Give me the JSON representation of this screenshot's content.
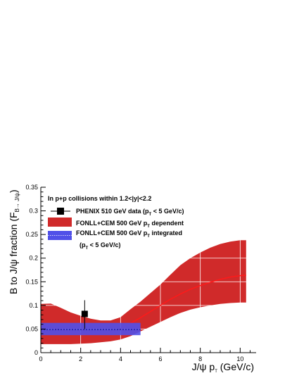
{
  "chart_data": {
    "type": "line",
    "xlabel": {
      "base": "J/ψ p",
      "sub": "T",
      "tail": " (GeV/c)"
    },
    "ylabel": {
      "base": "B to J/ψ fraction (F",
      "sub": "B→ J/ψ",
      "tail": ")"
    },
    "xlim": [
      0,
      10.8
    ],
    "ylim": [
      0,
      0.35
    ],
    "x_ticks": [
      0,
      2,
      4,
      6,
      8,
      10
    ],
    "y_ticks": [
      0,
      0.05,
      0.1,
      0.15,
      0.2,
      0.25,
      0.3,
      0.35
    ],
    "x_tick_labels": [
      "0",
      "2",
      "4",
      "6",
      "8",
      "10"
    ],
    "y_tick_labels": [
      "0",
      "0.05",
      "0.1",
      "0.15",
      "0.2",
      "0.25",
      "0.3",
      "0.35"
    ],
    "grid": true,
    "legend_header": "In p+p collisions within 1.2<|y|<2.2",
    "legend_entries": [
      {
        "base": "PHENIX 510 GeV data (p",
        "sub": "T",
        "tail": " < 5 GeV/c)"
      },
      {
        "base": "FONLL+CEM 500 GeV p",
        "sub": "T",
        "tail": " dependent"
      },
      {
        "base": "FONLL+CEM 500 GeV p",
        "sub": "T",
        "tail": " integrated"
      },
      {
        "base": "(p",
        "sub": "T",
        "tail": " < 5 GeV/c)"
      }
    ],
    "colors": {
      "data": "#000000",
      "band": "#d02a2a",
      "central_curve": "#ff1a1a",
      "integrated_band": "#5050e8",
      "integrated_line": "#000080",
      "grid": "#ffffff"
    },
    "series": [
      {
        "style": "band",
        "x": [
          0,
          0.5,
          1,
          1.5,
          2,
          2.5,
          3,
          3.5,
          4,
          4.5,
          5,
          5.5,
          6,
          6.5,
          7,
          7.5,
          8,
          8.5,
          9,
          9.5,
          10,
          10.3
        ],
        "upper": [
          0.103,
          0.104,
          0.095,
          0.085,
          0.078,
          0.072,
          0.068,
          0.068,
          0.075,
          0.092,
          0.108,
          0.126,
          0.144,
          0.165,
          0.185,
          0.2,
          0.212,
          0.222,
          0.23,
          0.235,
          0.238,
          0.238
        ],
        "lower": [
          0.018,
          0.018,
          0.018,
          0.018,
          0.019,
          0.02,
          0.022,
          0.024,
          0.028,
          0.035,
          0.045,
          0.055,
          0.065,
          0.075,
          0.084,
          0.091,
          0.096,
          0.1,
          0.103,
          0.105,
          0.106,
          0.106
        ]
      },
      {
        "style": "line",
        "x": [
          0,
          0.5,
          1,
          1.5,
          2,
          2.5,
          3,
          3.5,
          4,
          4.5,
          5,
          5.5,
          6,
          6.5,
          7,
          7.5,
          8,
          8.5,
          9,
          9.5,
          10,
          10.3
        ],
        "y": [
          0.058,
          0.054,
          0.048,
          0.043,
          0.04,
          0.038,
          0.039,
          0.043,
          0.051,
          0.062,
          0.074,
          0.087,
          0.1,
          0.113,
          0.124,
          0.134,
          0.142,
          0.149,
          0.155,
          0.16,
          0.163,
          0.164
        ]
      },
      {
        "style": "box",
        "x_range": [
          0,
          5
        ],
        "y_range": [
          0.037,
          0.063
        ],
        "central": 0.049
      },
      {
        "style": "point",
        "x": 2.2,
        "y": 0.082,
        "y_err_low": 0.032,
        "y_err_high": 0.029
      }
    ]
  }
}
